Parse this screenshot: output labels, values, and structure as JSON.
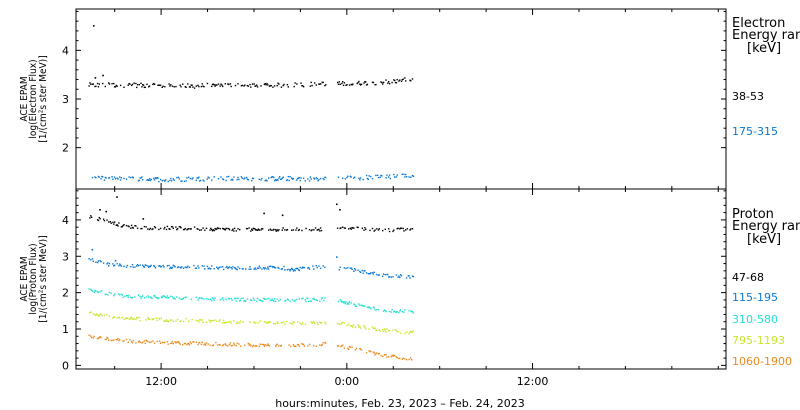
{
  "chart_data": [
    {
      "type": "scatter",
      "panel": "electron",
      "ylabel_lines": [
        "ACE EPAM",
        "log(Electron Flux)",
        "[1/(cm²s ster MeV)]"
      ],
      "ylim": [
        1.15,
        4.85
      ],
      "yticks": [
        "2",
        "3",
        "4"
      ],
      "ytick_values": [
        2,
        3,
        4
      ],
      "legend_title_lines": [
        "Electron",
        "Energy range",
        "[keV]"
      ],
      "legend_position": "right",
      "series": [
        {
          "name": "38-53",
          "color": "#000000",
          "points": [
            [
              -4.7,
              3.3
            ],
            [
              -2,
              3.3
            ],
            [
              0,
              3.28
            ],
            [
              2,
              3.28
            ],
            [
              4,
              3.3
            ],
            [
              6,
              3.28
            ],
            [
              8,
              3.3
            ],
            [
              10,
              3.32
            ],
            [
              12.3,
              3.33
            ],
            [
              14.3,
              3.36
            ],
            [
              16.3,
              3.42
            ]
          ],
          "outliers": [
            [
              -4.4,
              4.52
            ],
            [
              -4.3,
              3.45
            ],
            [
              -3.8,
              3.5
            ]
          ]
        },
        {
          "name": "175-315",
          "color": "#0a78d2",
          "points": [
            [
              -4.7,
              1.38
            ],
            [
              -2,
              1.37
            ],
            [
              0,
              1.36
            ],
            [
              2,
              1.37
            ],
            [
              4,
              1.38
            ],
            [
              6,
              1.37
            ],
            [
              8,
              1.38
            ],
            [
              10,
              1.37
            ],
            [
              12.3,
              1.39
            ],
            [
              14.3,
              1.41
            ],
            [
              16.3,
              1.44
            ]
          ],
          "outliers": []
        }
      ]
    },
    {
      "type": "scatter",
      "panel": "proton",
      "ylabel_lines": [
        "ACE EPAM",
        "log(Proton Flux)",
        "[1/(cm²s ster MeV)]"
      ],
      "ylim": [
        -0.1,
        4.85
      ],
      "yticks": [
        "0",
        "1",
        "2",
        "3",
        "4"
      ],
      "ytick_values": [
        0,
        1,
        2,
        3,
        4
      ],
      "legend_title_lines": [
        "Proton",
        "Energy range",
        "[keV]"
      ],
      "legend_position": "right",
      "series": [
        {
          "name": "47-68",
          "color": "#000000",
          "points": [
            [
              -4.7,
              4.1
            ],
            [
              -3.5,
              4.0
            ],
            [
              -2.5,
              3.85
            ],
            [
              -1,
              3.8
            ],
            [
              0,
              3.8
            ],
            [
              2,
              3.78
            ],
            [
              4,
              3.76
            ],
            [
              6,
              3.75
            ],
            [
              8,
              3.76
            ],
            [
              10,
              3.76
            ],
            [
              11,
              3.77
            ],
            [
              12.3,
              3.78
            ],
            [
              14.3,
              3.74
            ],
            [
              16.3,
              3.76
            ]
          ],
          "outliers": [
            [
              -4,
              4.3
            ],
            [
              -3.6,
              4.25
            ],
            [
              -2.9,
              4.65
            ],
            [
              -1.2,
              4.05
            ],
            [
              6.6,
              4.2
            ],
            [
              7.8,
              4.15
            ],
            [
              11.3,
              4.45
            ],
            [
              11.5,
              4.3
            ]
          ]
        },
        {
          "name": "115-195",
          "color": "#0a78d2",
          "points": [
            [
              -4.7,
              2.95
            ],
            [
              -3.5,
              2.8
            ],
            [
              -2,
              2.75
            ],
            [
              0,
              2.73
            ],
            [
              2,
              2.72
            ],
            [
              4,
              2.7
            ],
            [
              6,
              2.7
            ],
            [
              7.5,
              2.72
            ],
            [
              8.5,
              2.65
            ],
            [
              10,
              2.72
            ],
            [
              11,
              2.7
            ],
            [
              12.3,
              2.65
            ],
            [
              14.3,
              2.5
            ],
            [
              16.3,
              2.45
            ]
          ],
          "outliers": [
            [
              -4.5,
              3.2
            ],
            [
              -3.0,
              2.9
            ],
            [
              11.3,
              3.0
            ]
          ]
        },
        {
          "name": "310-580",
          "color": "#22e0d0",
          "points": [
            [
              -4.7,
              2.1
            ],
            [
              -3,
              1.95
            ],
            [
              -2,
              1.9
            ],
            [
              0,
              1.9
            ],
            [
              2,
              1.85
            ],
            [
              4,
              1.83
            ],
            [
              6,
              1.82
            ],
            [
              8,
              1.82
            ],
            [
              10,
              1.82
            ],
            [
              11,
              1.85
            ],
            [
              12.3,
              1.7
            ],
            [
              14.3,
              1.55
            ],
            [
              16.3,
              1.48
            ]
          ],
          "outliers": []
        },
        {
          "name": "795-1193",
          "color": "#c8e628",
          "points": [
            [
              -4.7,
              1.45
            ],
            [
              -3,
              1.35
            ],
            [
              -2,
              1.3
            ],
            [
              0,
              1.28
            ],
            [
              2,
              1.25
            ],
            [
              4,
              1.22
            ],
            [
              6,
              1.2
            ],
            [
              8,
              1.18
            ],
            [
              10,
              1.18
            ],
            [
              11,
              1.2
            ],
            [
              12.3,
              1.12
            ],
            [
              14.3,
              0.98
            ],
            [
              16.3,
              0.92
            ]
          ],
          "outliers": []
        },
        {
          "name": "1060-1900",
          "color": "#ec8a1e",
          "points": [
            [
              -4.7,
              0.82
            ],
            [
              -3,
              0.72
            ],
            [
              -2,
              0.68
            ],
            [
              0,
              0.65
            ],
            [
              2,
              0.62
            ],
            [
              4,
              0.6
            ],
            [
              6,
              0.58
            ],
            [
              8,
              0.58
            ],
            [
              10,
              0.58
            ],
            [
              11,
              0.62
            ],
            [
              12.3,
              0.48
            ],
            [
              14.3,
              0.3
            ],
            [
              16.3,
              0.18
            ]
          ],
          "outliers": []
        }
      ]
    }
  ],
  "x_axis": {
    "xlim": [
      -5.5,
      36.5
    ],
    "data_gap": [
      10.6,
      11.35
    ],
    "data_end": 16.3,
    "tick_labels": [
      "12:00",
      "0:00",
      "12:00"
    ],
    "tick_values": [
      0,
      12,
      24
    ],
    "label": "hours:minutes, Feb. 23, 2023 – Feb. 24, 2023"
  }
}
